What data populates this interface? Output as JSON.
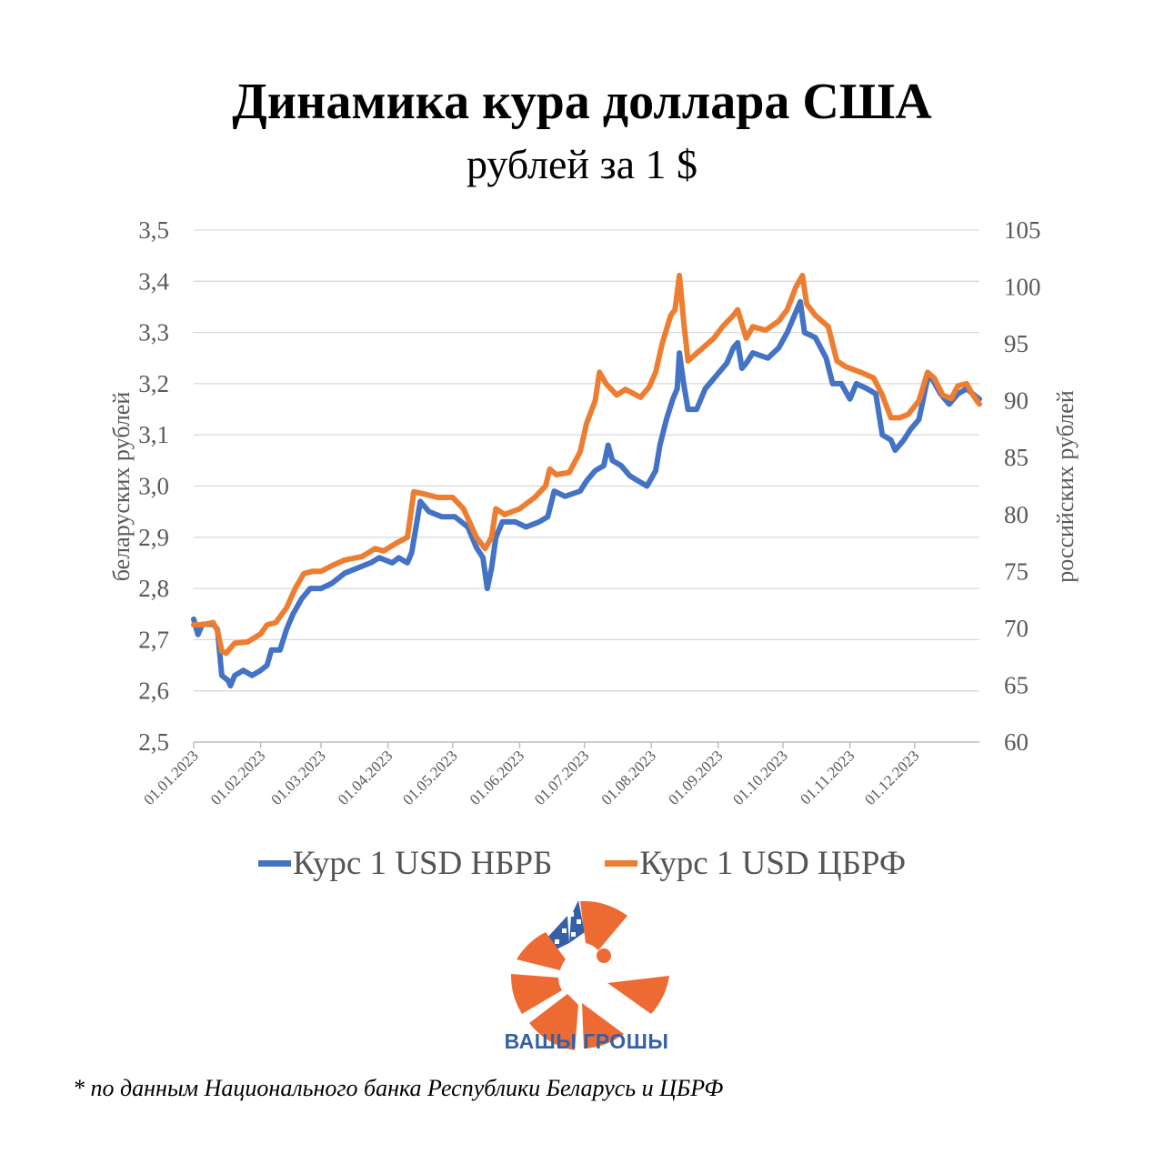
{
  "header": {
    "title": "Динамика кура доллара США",
    "subtitle": "рублей за 1 $"
  },
  "chart_data": {
    "type": "line",
    "title": "Динамика кура доллара США",
    "subtitle": "рублей за 1 $",
    "ylabel": "беларуских рублей",
    "ylabel_right": "российских рублей",
    "ylim": [
      2.5,
      3.5
    ],
    "yticks": [
      "3,5",
      "3,4",
      "3,3",
      "3,2",
      "3,1",
      "3,0",
      "2,9",
      "2,8",
      "2,7",
      "2,6",
      "2,5"
    ],
    "ylim_right": [
      60,
      105
    ],
    "yticks_right": [
      "105",
      "100",
      "95",
      "90",
      "85",
      "80",
      "75",
      "70",
      "65",
      "60"
    ],
    "xlim": [
      "2023-01-01",
      "2023-12-31"
    ],
    "x_ticks": [
      "01.01.2023",
      "01.02.2023",
      "01.03.2023",
      "01.04.2023",
      "01.05.2023",
      "01.06.2023",
      "01.07.2023",
      "01.08.2023",
      "01.09.2023",
      "01.10.2023",
      "01.11.2023",
      "01.12.2023"
    ],
    "grid": true,
    "legend_position": "bottom",
    "series": [
      {
        "name": "Курс 1 USD НБРБ",
        "axis": "left",
        "color": "#4472c4",
        "points": [
          [
            "2023-01-01",
            2.74
          ],
          [
            "2023-01-03",
            2.71
          ],
          [
            "2023-01-05",
            2.73
          ],
          [
            "2023-01-10",
            2.73
          ],
          [
            "2023-01-12",
            2.72
          ],
          [
            "2023-01-14",
            2.63
          ],
          [
            "2023-01-17",
            2.62
          ],
          [
            "2023-01-18",
            2.61
          ],
          [
            "2023-01-20",
            2.63
          ],
          [
            "2023-01-24",
            2.64
          ],
          [
            "2023-01-28",
            2.63
          ],
          [
            "2023-02-01",
            2.64
          ],
          [
            "2023-02-04",
            2.65
          ],
          [
            "2023-02-06",
            2.68
          ],
          [
            "2023-02-10",
            2.68
          ],
          [
            "2023-02-13",
            2.72
          ],
          [
            "2023-02-16",
            2.75
          ],
          [
            "2023-02-20",
            2.78
          ],
          [
            "2023-02-24",
            2.8
          ],
          [
            "2023-03-01",
            2.8
          ],
          [
            "2023-03-06",
            2.81
          ],
          [
            "2023-03-12",
            2.83
          ],
          [
            "2023-03-18",
            2.84
          ],
          [
            "2023-03-24",
            2.85
          ],
          [
            "2023-03-28",
            2.86
          ],
          [
            "2023-04-03",
            2.85
          ],
          [
            "2023-04-06",
            2.86
          ],
          [
            "2023-04-10",
            2.85
          ],
          [
            "2023-04-12",
            2.87
          ],
          [
            "2023-04-14",
            2.92
          ],
          [
            "2023-04-16",
            2.97
          ],
          [
            "2023-04-20",
            2.95
          ],
          [
            "2023-04-26",
            2.94
          ],
          [
            "2023-05-02",
            2.94
          ],
          [
            "2023-05-08",
            2.92
          ],
          [
            "2023-05-12",
            2.88
          ],
          [
            "2023-05-15",
            2.86
          ],
          [
            "2023-05-17",
            2.8
          ],
          [
            "2023-05-19",
            2.84
          ],
          [
            "2023-05-21",
            2.9
          ],
          [
            "2023-05-24",
            2.93
          ],
          [
            "2023-05-30",
            2.93
          ],
          [
            "2023-06-04",
            2.92
          ],
          [
            "2023-06-10",
            2.93
          ],
          [
            "2023-06-14",
            2.94
          ],
          [
            "2023-06-17",
            2.99
          ],
          [
            "2023-06-22",
            2.98
          ],
          [
            "2023-06-29",
            2.99
          ],
          [
            "2023-07-02",
            3.01
          ],
          [
            "2023-07-06",
            3.03
          ],
          [
            "2023-07-10",
            3.04
          ],
          [
            "2023-07-12",
            3.08
          ],
          [
            "2023-07-14",
            3.05
          ],
          [
            "2023-07-18",
            3.04
          ],
          [
            "2023-07-22",
            3.02
          ],
          [
            "2023-07-26",
            3.01
          ],
          [
            "2023-07-30",
            3.0
          ],
          [
            "2023-08-03",
            3.03
          ],
          [
            "2023-08-05",
            3.08
          ],
          [
            "2023-08-08",
            3.13
          ],
          [
            "2023-08-11",
            3.17
          ],
          [
            "2023-08-13",
            3.19
          ],
          [
            "2023-08-14",
            3.26
          ],
          [
            "2023-08-16",
            3.2
          ],
          [
            "2023-08-18",
            3.15
          ],
          [
            "2023-08-22",
            3.15
          ],
          [
            "2023-08-26",
            3.19
          ],
          [
            "2023-09-01",
            3.22
          ],
          [
            "2023-09-05",
            3.24
          ],
          [
            "2023-09-08",
            3.27
          ],
          [
            "2023-09-10",
            3.28
          ],
          [
            "2023-09-12",
            3.23
          ],
          [
            "2023-09-14",
            3.24
          ],
          [
            "2023-09-17",
            3.26
          ],
          [
            "2023-09-24",
            3.25
          ],
          [
            "2023-09-29",
            3.27
          ],
          [
            "2023-10-03",
            3.3
          ],
          [
            "2023-10-07",
            3.34
          ],
          [
            "2023-10-09",
            3.36
          ],
          [
            "2023-10-11",
            3.3
          ],
          [
            "2023-10-16",
            3.29
          ],
          [
            "2023-10-21",
            3.25
          ],
          [
            "2023-10-24",
            3.2
          ],
          [
            "2023-10-28",
            3.2
          ],
          [
            "2023-11-01",
            3.17
          ],
          [
            "2023-11-04",
            3.2
          ],
          [
            "2023-11-09",
            3.19
          ],
          [
            "2023-11-13",
            3.18
          ],
          [
            "2023-11-16",
            3.1
          ],
          [
            "2023-11-20",
            3.09
          ],
          [
            "2023-11-22",
            3.07
          ],
          [
            "2023-11-26",
            3.09
          ],
          [
            "2023-11-29",
            3.11
          ],
          [
            "2023-12-03",
            3.13
          ],
          [
            "2023-12-07",
            3.21
          ],
          [
            "2023-12-09",
            3.21
          ],
          [
            "2023-12-13",
            3.18
          ],
          [
            "2023-12-17",
            3.16
          ],
          [
            "2023-12-21",
            3.18
          ],
          [
            "2023-12-25",
            3.19
          ],
          [
            "2023-12-28",
            3.18
          ],
          [
            "2023-12-31",
            3.17
          ]
        ]
      },
      {
        "name": "Курс 1 USD ЦБРФ",
        "axis": "right",
        "color": "#ed7d31",
        "points": [
          [
            "2023-01-01",
            70.3
          ],
          [
            "2023-01-05",
            70.3
          ],
          [
            "2023-01-10",
            70.5
          ],
          [
            "2023-01-12",
            69.8
          ],
          [
            "2023-01-14",
            68.0
          ],
          [
            "2023-01-16",
            67.8
          ],
          [
            "2023-01-20",
            68.7
          ],
          [
            "2023-01-26",
            68.8
          ],
          [
            "2023-02-01",
            69.5
          ],
          [
            "2023-02-04",
            70.3
          ],
          [
            "2023-02-08",
            70.5
          ],
          [
            "2023-02-13",
            71.8
          ],
          [
            "2023-02-17",
            73.5
          ],
          [
            "2023-02-21",
            74.8
          ],
          [
            "2023-02-25",
            75.0
          ],
          [
            "2023-03-01",
            75.0
          ],
          [
            "2023-03-06",
            75.5
          ],
          [
            "2023-03-12",
            76.0
          ],
          [
            "2023-03-20",
            76.3
          ],
          [
            "2023-03-26",
            77.0
          ],
          [
            "2023-03-30",
            76.8
          ],
          [
            "2023-04-05",
            77.5
          ],
          [
            "2023-04-10",
            78.0
          ],
          [
            "2023-04-13",
            82.0
          ],
          [
            "2023-04-18",
            81.8
          ],
          [
            "2023-04-24",
            81.5
          ],
          [
            "2023-05-01",
            81.5
          ],
          [
            "2023-05-06",
            80.5
          ],
          [
            "2023-05-12",
            78.0
          ],
          [
            "2023-05-16",
            77.0
          ],
          [
            "2023-05-19",
            78.0
          ],
          [
            "2023-05-21",
            80.5
          ],
          [
            "2023-05-25",
            80.0
          ],
          [
            "2023-06-01",
            80.5
          ],
          [
            "2023-06-08",
            81.5
          ],
          [
            "2023-06-13",
            82.5
          ],
          [
            "2023-06-15",
            84.0
          ],
          [
            "2023-06-18",
            83.5
          ],
          [
            "2023-06-24",
            83.7
          ],
          [
            "2023-06-29",
            85.5
          ],
          [
            "2023-07-02",
            88.0
          ],
          [
            "2023-07-06",
            90.0
          ],
          [
            "2023-07-08",
            92.5
          ],
          [
            "2023-07-11",
            91.5
          ],
          [
            "2023-07-16",
            90.5
          ],
          [
            "2023-07-20",
            91.0
          ],
          [
            "2023-07-27",
            90.3
          ],
          [
            "2023-07-31",
            91.2
          ],
          [
            "2023-08-03",
            92.5
          ],
          [
            "2023-08-06",
            95.0
          ],
          [
            "2023-08-10",
            97.5
          ],
          [
            "2023-08-12",
            98.0
          ],
          [
            "2023-08-14",
            101.0
          ],
          [
            "2023-08-16",
            97.0
          ],
          [
            "2023-08-18",
            93.5
          ],
          [
            "2023-08-24",
            94.5
          ],
          [
            "2023-08-30",
            95.5
          ],
          [
            "2023-09-03",
            96.5
          ],
          [
            "2023-09-08",
            97.5
          ],
          [
            "2023-09-10",
            98.0
          ],
          [
            "2023-09-14",
            95.5
          ],
          [
            "2023-09-17",
            96.5
          ],
          [
            "2023-09-23",
            96.2
          ],
          [
            "2023-09-29",
            97.0
          ],
          [
            "2023-10-03",
            98.0
          ],
          [
            "2023-10-07",
            100.0
          ],
          [
            "2023-10-10",
            101.0
          ],
          [
            "2023-10-12",
            98.5
          ],
          [
            "2023-10-16",
            97.5
          ],
          [
            "2023-10-22",
            96.5
          ],
          [
            "2023-10-26",
            93.5
          ],
          [
            "2023-10-30",
            93.0
          ],
          [
            "2023-11-06",
            92.5
          ],
          [
            "2023-11-12",
            92.0
          ],
          [
            "2023-11-16",
            90.5
          ],
          [
            "2023-11-20",
            88.5
          ],
          [
            "2023-11-24",
            88.5
          ],
          [
            "2023-11-28",
            88.8
          ],
          [
            "2023-12-03",
            90.0
          ],
          [
            "2023-12-07",
            92.5
          ],
          [
            "2023-12-10",
            92.0
          ],
          [
            "2023-12-14",
            90.5
          ],
          [
            "2023-12-18",
            90.2
          ],
          [
            "2023-12-21",
            91.3
          ],
          [
            "2023-12-25",
            91.5
          ],
          [
            "2023-12-28",
            90.5
          ],
          [
            "2023-12-31",
            89.7
          ]
        ]
      }
    ]
  },
  "brand": {
    "name": "ВАШЫ ГРОШЫ",
    "color_orange": "#ed6a32",
    "color_blue": "#3560a6"
  },
  "footer": {
    "source": "* по данным Национального банка Республики Беларусь и ЦБРФ"
  }
}
